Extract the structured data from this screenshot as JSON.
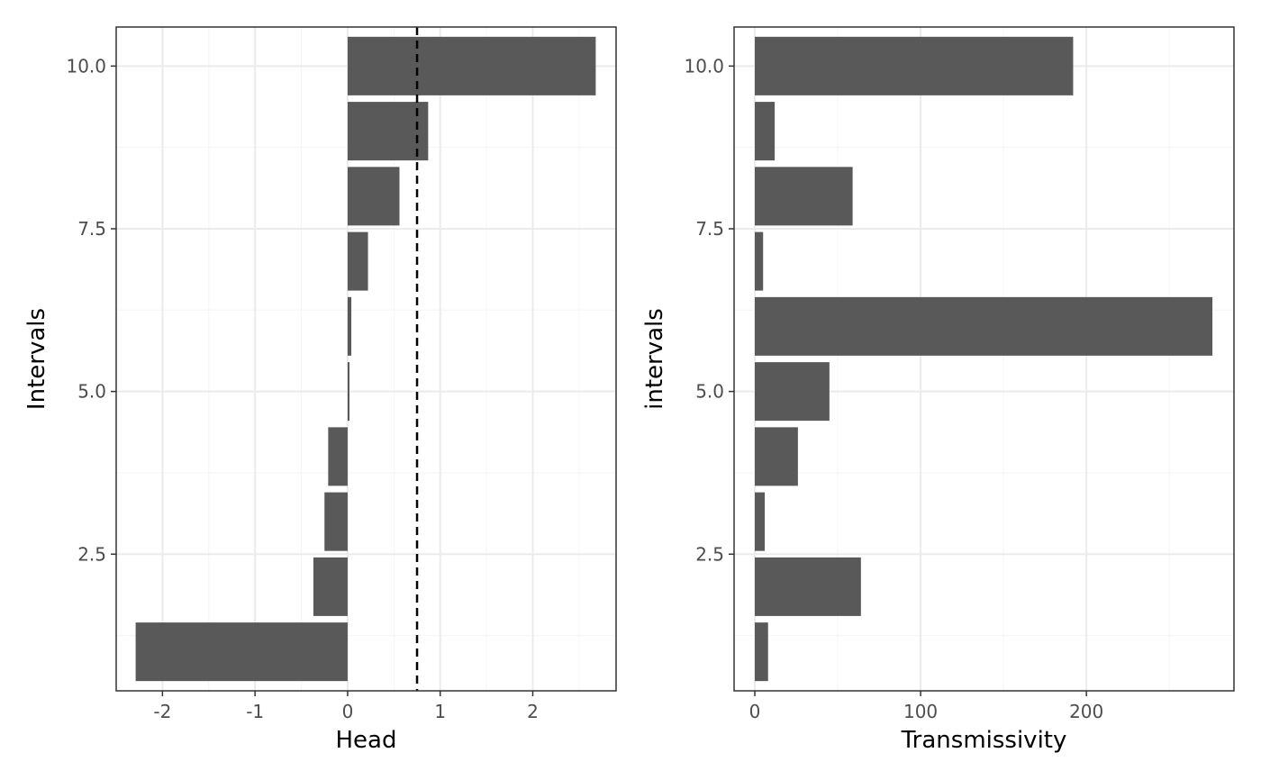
{
  "chart_data": [
    {
      "type": "bar",
      "orientation": "horizontal",
      "xlabel": "Head",
      "ylabel": "Intervals",
      "categories": [
        1,
        2,
        3,
        4,
        5,
        6,
        7,
        8,
        9,
        10
      ],
      "values": [
        -2.29,
        -0.37,
        -0.25,
        -0.21,
        0.02,
        0.04,
        0.22,
        0.56,
        0.87,
        2.68
      ],
      "xlim": [
        -2.5,
        2.9
      ],
      "ylim": [
        0.4,
        10.6
      ],
      "xticks": [
        -2,
        -1,
        0,
        1,
        2
      ],
      "xtick_labels": [
        "-2",
        "-1",
        "0",
        "1",
        "2"
      ],
      "yticks": [
        2.5,
        5.0,
        7.5,
        10.0
      ],
      "ytick_labels": [
        "2.5",
        "5.0",
        "7.5",
        "10.0"
      ],
      "reference_line": {
        "x": 0.75,
        "style": "dashed",
        "color": "#000000"
      },
      "bar_color": "#595959",
      "grid": true
    },
    {
      "type": "bar",
      "orientation": "horizontal",
      "xlabel": "Transmissivity",
      "ylabel": "intervals",
      "categories": [
        1,
        2,
        3,
        4,
        5,
        6,
        7,
        8,
        9,
        10
      ],
      "values": [
        8,
        64,
        6,
        26,
        45,
        276,
        5,
        59,
        12,
        192
      ],
      "xlim": [
        -12.5,
        289
      ],
      "ylim": [
        0.4,
        10.6
      ],
      "xticks": [
        0,
        100,
        200
      ],
      "xtick_labels": [
        "0",
        "100",
        "200"
      ],
      "yticks": [
        2.5,
        5.0,
        7.5,
        10.0
      ],
      "ytick_labels": [
        "2.5",
        "5.0",
        "7.5",
        "10.0"
      ],
      "bar_color": "#595959",
      "grid": true
    }
  ]
}
